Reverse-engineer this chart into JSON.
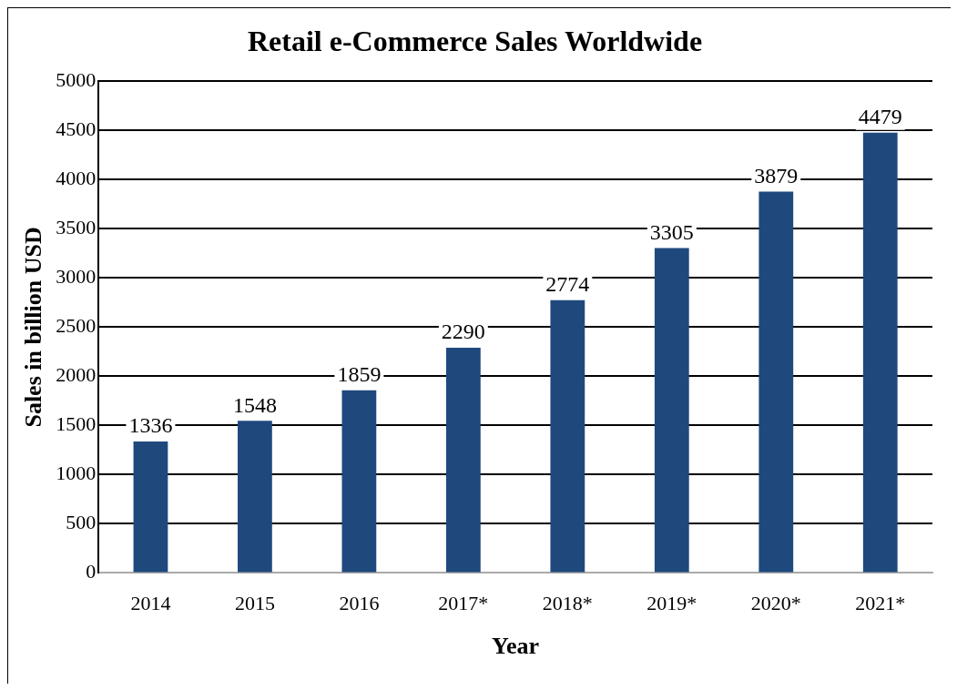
{
  "chart_data": {
    "type": "bar",
    "title": "Retail e-Commerce Sales Worldwide",
    "xlabel": "Year",
    "ylabel": "Sales in billion USD",
    "categories": [
      "2014",
      "2015",
      "2016",
      "2017*",
      "2018*",
      "2019*",
      "2020*",
      "2021*"
    ],
    "values": [
      1336,
      1548,
      1859,
      2290,
      2774,
      3305,
      3879,
      4479
    ],
    "color": "#1f497d",
    "ylim": [
      0,
      5000
    ],
    "yticks": [
      0,
      500,
      1000,
      1500,
      2000,
      2500,
      3000,
      3500,
      4000,
      4500,
      5000
    ],
    "grid": "y",
    "legend": false,
    "data_labels": true
  }
}
